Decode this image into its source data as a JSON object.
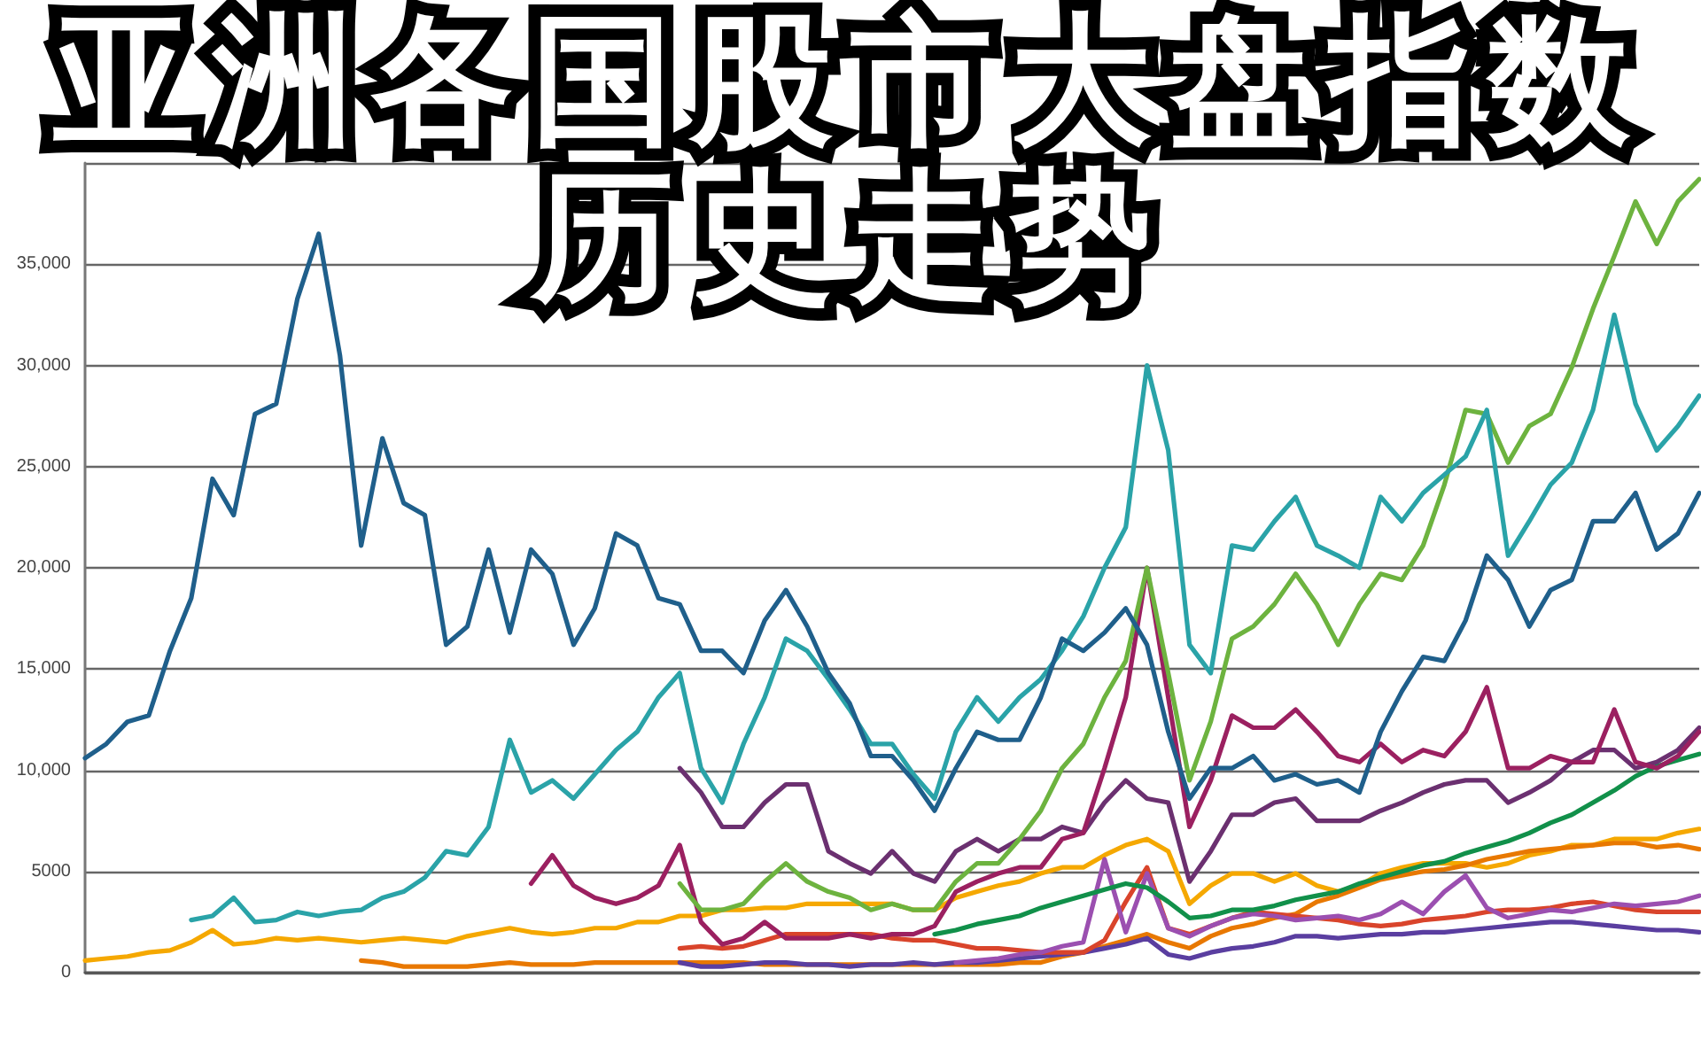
{
  "chart_data": {
    "type": "line",
    "title": "亚洲各国股市大盘指数历史走势",
    "categories": [
      null,
      null,
      null,
      null,
      null,
      null,
      null,
      null,
      null,
      null,
      null,
      null,
      null,
      null,
      null,
      null,
      null,
      null,
      null,
      null,
      null,
      null,
      null,
      null,
      null,
      null,
      null,
      null,
      null,
      null,
      null,
      null,
      null,
      null,
      null,
      null,
      null,
      null,
      null,
      null,
      null,
      null,
      null,
      null,
      null,
      null,
      null,
      null,
      null,
      null,
      null,
      null,
      null,
      null,
      null,
      null,
      null,
      null,
      null,
      null,
      null,
      null,
      null,
      null,
      null,
      null,
      null,
      null,
      null,
      null,
      null,
      null,
      null,
      null,
      null,
      null,
      null
    ],
    "series": [
      {
        "color": "#f5a800",
        "values": [
          600,
          700,
          800,
          1000,
          1100,
          1500,
          2100,
          1400,
          1500,
          1700,
          1600,
          1700,
          1600,
          1500,
          1600,
          1700,
          1600,
          1500,
          1800,
          2000,
          2200,
          2000,
          1900,
          2000,
          2200,
          2200,
          2500,
          2500,
          2800,
          2800,
          3100,
          3100,
          3200,
          3200,
          3400,
          3400,
          3400,
          3400,
          3400,
          3100,
          3100,
          3700,
          4000,
          4300,
          4500,
          4900,
          5200,
          5200,
          5800,
          6300,
          6600,
          6000,
          3400,
          4300,
          4900,
          4900,
          4500,
          4900,
          4300,
          4000,
          4300,
          4900,
          5200,
          5400,
          5400,
          5400,
          5200,
          5400,
          5800,
          6000,
          6300,
          6300,
          6600,
          6600,
          6600,
          6900,
          7100
        ]
      },
      {
        "color": "#e87800",
        "values": [
          null,
          null,
          null,
          null,
          null,
          null,
          null,
          null,
          null,
          null,
          null,
          null,
          null,
          600,
          500,
          300,
          300,
          300,
          300,
          400,
          500,
          400,
          400,
          400,
          500,
          500,
          500,
          500,
          500,
          500,
          500,
          500,
          400,
          400,
          400,
          400,
          400,
          400,
          400,
          400,
          400,
          400,
          400,
          400,
          500,
          500,
          800,
          1000,
          1300,
          1600,
          1900,
          1500,
          1200,
          1800,
          2200,
          2400,
          2700,
          2900,
          3500,
          3800,
          4200,
          4600,
          4800,
          5000,
          5100,
          5300,
          5600,
          5800,
          6000,
          6100,
          6200,
          6300,
          6400,
          6400,
          6200,
          6300,
          6100
        ]
      },
      {
        "color": "#5a3ea0",
        "values": [
          null,
          null,
          null,
          null,
          null,
          null,
          null,
          null,
          null,
          null,
          null,
          null,
          null,
          null,
          null,
          null,
          null,
          null,
          null,
          null,
          null,
          null,
          null,
          null,
          null,
          null,
          null,
          null,
          500,
          300,
          300,
          400,
          500,
          500,
          400,
          400,
          300,
          400,
          400,
          500,
          400,
          500,
          500,
          600,
          700,
          800,
          900,
          1000,
          1200,
          1400,
          1700,
          900,
          700,
          1000,
          1200,
          1300,
          1500,
          1800,
          1800,
          1700,
          1800,
          1900,
          1900,
          2000,
          2000,
          2100,
          2200,
          2300,
          2400,
          2500,
          2500,
          2400,
          2300,
          2200,
          2100,
          2100,
          2000
        ]
      },
      {
        "color": "#d9442b",
        "values": [
          null,
          null,
          null,
          null,
          null,
          null,
          null,
          null,
          null,
          null,
          null,
          null,
          null,
          null,
          null,
          null,
          null,
          null,
          null,
          null,
          null,
          null,
          null,
          null,
          null,
          null,
          null,
          null,
          1200,
          1300,
          1200,
          1300,
          1600,
          1900,
          1900,
          1900,
          1900,
          1900,
          1700,
          1600,
          1600,
          1400,
          1200,
          1200,
          1100,
          1000,
          1000,
          1000,
          1600,
          3500,
          5200,
          2200,
          1900,
          2300,
          2700,
          3000,
          2900,
          2800,
          2700,
          2600,
          2400,
          2300,
          2400,
          2600,
          2700,
          2800,
          3000,
          3100,
          3100,
          3200,
          3400,
          3500,
          3300,
          3100,
          3000,
          3000,
          3000
        ]
      },
      {
        "color": "#9b4fb0",
        "values": [
          null,
          null,
          null,
          null,
          null,
          null,
          null,
          null,
          null,
          null,
          null,
          null,
          null,
          null,
          null,
          null,
          null,
          null,
          null,
          null,
          null,
          null,
          null,
          null,
          null,
          null,
          null,
          null,
          null,
          null,
          null,
          null,
          null,
          null,
          null,
          null,
          null,
          null,
          null,
          null,
          null,
          500,
          600,
          700,
          900,
          1000,
          1300,
          1500,
          5600,
          2000,
          4900,
          2200,
          1800,
          2300,
          2700,
          2900,
          2800,
          2600,
          2700,
          2800,
          2600,
          2900,
          3500,
          2900,
          4000,
          4800,
          3200,
          2700,
          2900,
          3100,
          3000,
          3200,
          3400,
          3300,
          3400,
          3500,
          3800
        ]
      },
      {
        "color": "#11904a",
        "values": [
          null,
          null,
          null,
          null,
          null,
          null,
          null,
          null,
          null,
          null,
          null,
          null,
          null,
          null,
          null,
          null,
          null,
          null,
          null,
          null,
          null,
          null,
          null,
          null,
          null,
          null,
          null,
          null,
          null,
          null,
          null,
          null,
          null,
          null,
          null,
          null,
          null,
          null,
          null,
          null,
          1900,
          2100,
          2400,
          2600,
          2800,
          3200,
          3500,
          3800,
          4100,
          4400,
          4200,
          3500,
          2700,
          2800,
          3100,
          3100,
          3300,
          3600,
          3800,
          4000,
          4400,
          4700,
          5000,
          5300,
          5500,
          5900,
          6200,
          6500,
          6900,
          7400,
          7800,
          8400,
          9000,
          9700,
          10200,
          10500,
          10800
        ]
      },
      {
        "color": "#6b3070",
        "values": [
          null,
          null,
          null,
          null,
          null,
          null,
          null,
          null,
          null,
          null,
          null,
          null,
          null,
          null,
          null,
          null,
          null,
          null,
          null,
          null,
          null,
          null,
          null,
          null,
          null,
          null,
          null,
          null,
          10100,
          8900,
          7200,
          7200,
          8400,
          9300,
          9300,
          6000,
          5400,
          4900,
          6000,
          4900,
          4500,
          6000,
          6600,
          6000,
          6600,
          6600,
          7200,
          6900,
          8400,
          9500,
          8600,
          8400,
          4500,
          6000,
          7800,
          7800,
          8400,
          8600,
          7500,
          7500,
          7500,
          8000,
          8400,
          8900,
          9300,
          9500,
          9500,
          8400,
          8900,
          9500,
          10400,
          11000,
          11000,
          10100,
          10400,
          11000,
          12100
        ]
      },
      {
        "color": "#9b2060",
        "values": [
          null,
          null,
          null,
          null,
          null,
          null,
          null,
          null,
          null,
          null,
          null,
          null,
          null,
          null,
          null,
          null,
          null,
          null,
          null,
          null,
          null,
          4400,
          5800,
          4300,
          3700,
          3400,
          3700,
          4300,
          6300,
          2500,
          1400,
          1700,
          2500,
          1700,
          1700,
          1700,
          1900,
          1700,
          1900,
          1900,
          2300,
          4000,
          4500,
          4900,
          5200,
          5200,
          6600,
          6900,
          10100,
          13600,
          20000,
          13600,
          7200,
          9500,
          12700,
          12100,
          12100,
          13000,
          11900,
          10700,
          10400,
          11300,
          10400,
          11000,
          10700,
          11900,
          14100,
          10100,
          10100,
          10700,
          10400,
          10400,
          13000,
          10400,
          10100,
          10700,
          11900
        ]
      },
      {
        "color": "#6db33f",
        "values": [
          null,
          null,
          null,
          null,
          null,
          null,
          null,
          null,
          null,
          null,
          null,
          null,
          null,
          null,
          null,
          null,
          null,
          null,
          null,
          null,
          null,
          null,
          null,
          null,
          null,
          null,
          null,
          null,
          4400,
          3100,
          3100,
          3400,
          4500,
          5400,
          4500,
          4000,
          3700,
          3100,
          3400,
          3100,
          3100,
          4500,
          5400,
          5400,
          6600,
          8000,
          10100,
          11300,
          13600,
          15400,
          20000,
          14800,
          9500,
          12400,
          16500,
          17100,
          18200,
          19700,
          18200,
          16200,
          18200,
          19700,
          19400,
          21100,
          24100,
          27800,
          27600,
          25200,
          27000,
          27600,
          29900,
          32800,
          35400,
          38100,
          36000,
          38100,
          39200
        ]
      },
      {
        "color": "#2aa3a8",
        "values": [
          null,
          null,
          null,
          null,
          null,
          2600,
          2800,
          3700,
          2500,
          2600,
          3000,
          2800,
          3000,
          3100,
          3700,
          4000,
          4700,
          6000,
          5800,
          7200,
          11500,
          8900,
          9500,
          8600,
          9800,
          11000,
          11900,
          13600,
          14800,
          10100,
          8400,
          11300,
          13600,
          16500,
          15900,
          14500,
          13000,
          11300,
          11300,
          9800,
          8600,
          11900,
          13600,
          12400,
          13600,
          14500,
          15900,
          17600,
          20000,
          22000,
          30000,
          25800,
          16200,
          14800,
          21100,
          20900,
          22300,
          23500,
          21100,
          20600,
          20000,
          23500,
          22300,
          23700,
          24600,
          25500,
          27800,
          20600,
          22300,
          24100,
          25200,
          27800,
          32500,
          28100,
          25800,
          27000,
          28500
        ]
      },
      {
        "color": "#1f5f8b",
        "values": [
          10600,
          11300,
          12400,
          12700,
          15900,
          18500,
          24400,
          22600,
          27600,
          28100,
          33300,
          36500,
          30500,
          21100,
          26400,
          23200,
          22600,
          16200,
          17100,
          20900,
          16800,
          20900,
          19700,
          16200,
          18000,
          21700,
          21100,
          18500,
          18200,
          15900,
          15900,
          14800,
          17400,
          18900,
          17100,
          14800,
          13300,
          10700,
          10700,
          9500,
          8000,
          10100,
          11900,
          11500,
          11500,
          13600,
          16500,
          15900,
          16800,
          18000,
          16200,
          11900,
          8600,
          10100,
          10100,
          10700,
          9500,
          9800,
          9300,
          9500,
          8900,
          11900,
          13900,
          15600,
          15400,
          17400,
          20600,
          19400,
          17100,
          18900,
          19400,
          22300,
          22300,
          23700,
          20900,
          21700,
          23700
        ]
      }
    ],
    "ylim": [
      0,
      40000
    ],
    "yticks": [
      0,
      5000,
      {
        "value": 10000,
        "label": "10,000"
      },
      {
        "value": 15000,
        "label": "15,000"
      },
      {
        "value": 20000,
        "label": "20,000"
      },
      {
        "value": 25000,
        "label": "25,000"
      },
      {
        "value": 30000,
        "label": "30,000"
      },
      {
        "value": 35000,
        "label": "35,000"
      }
    ],
    "grid": "y",
    "tick_labels": "y"
  }
}
